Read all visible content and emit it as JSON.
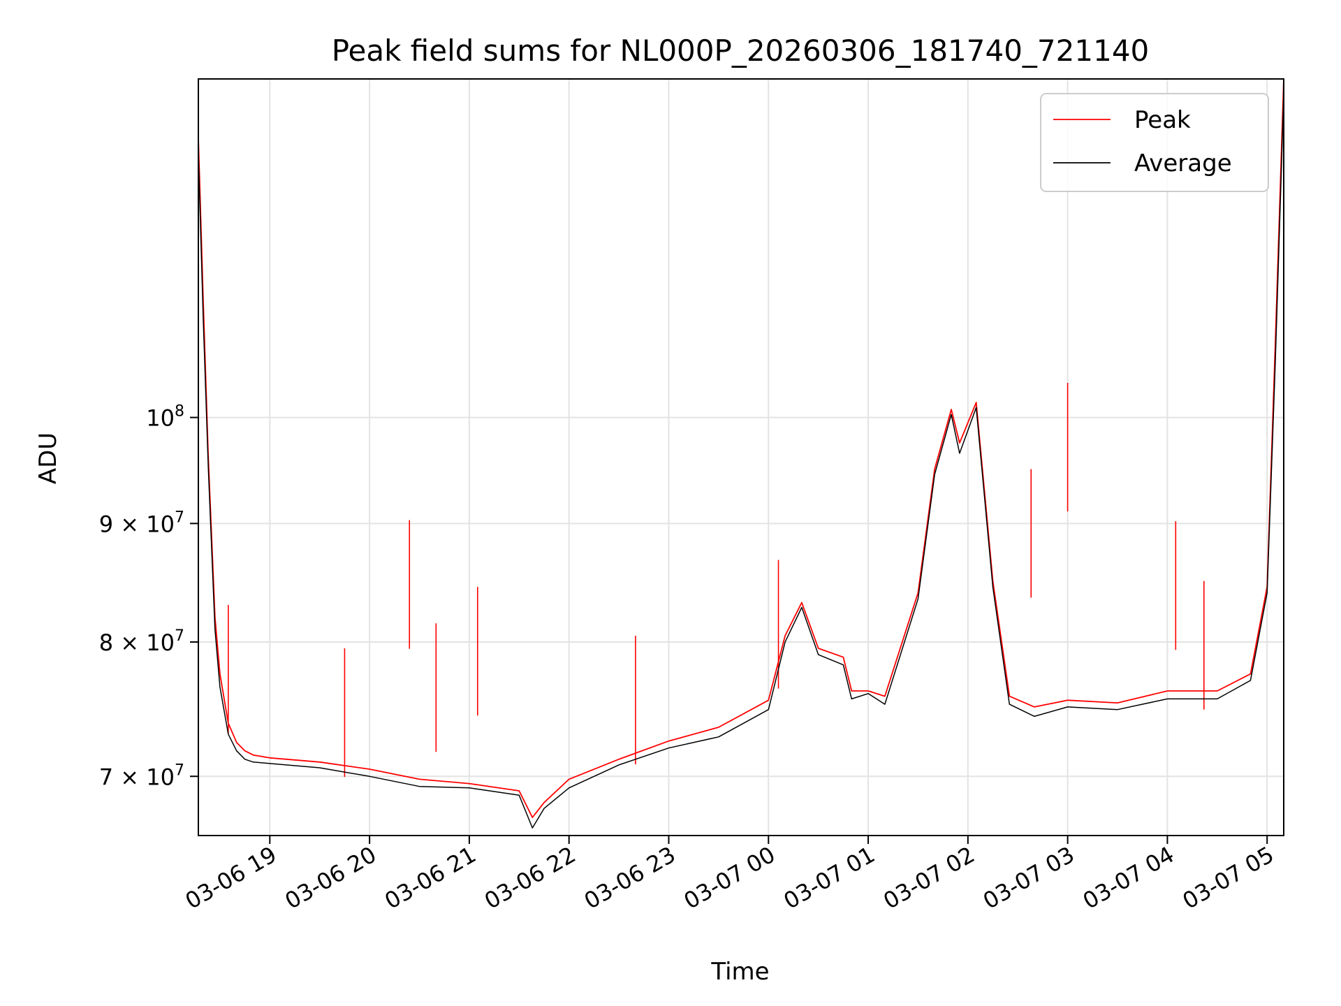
{
  "chart_data": {
    "type": "line",
    "title": "Peak field sums for NL000P_20260306_181740_721140",
    "xlabel": "Time",
    "ylabel": "ADU",
    "yscale": "log",
    "ylim": [
      66000000,
      140000000
    ],
    "xlim": [
      "2026-03-06 18:17",
      "2026-03-07 05:10"
    ],
    "grid": true,
    "legend": "upper right",
    "x_ticks": [
      "03-06 19",
      "03-06 20",
      "03-06 21",
      "03-06 22",
      "03-06 23",
      "03-07 00",
      "03-07 01",
      "03-07 02",
      "03-07 03",
      "03-07 04",
      "03-07 05"
    ],
    "x_tick_times": [
      "2026-03-06 19:00",
      "2026-03-06 20:00",
      "2026-03-06 21:00",
      "2026-03-06 22:00",
      "2026-03-06 23:00",
      "2026-03-07 00:00",
      "2026-03-07 01:00",
      "2026-03-07 02:00",
      "2026-03-07 03:00",
      "2026-03-07 04:00",
      "2026-03-07 05:00"
    ],
    "y_ticks": [
      {
        "value": 70000000,
        "mantissa": "7",
        "exponent": "7"
      },
      {
        "value": 80000000,
        "mantissa": "8",
        "exponent": "7"
      },
      {
        "value": 90000000,
        "mantissa": "9",
        "exponent": "7"
      },
      {
        "value": 100000000,
        "mantissa": "",
        "exponent": "8"
      }
    ],
    "series": [
      {
        "name": "Peak",
        "color": "#ff0000",
        "x": [
          "2026-03-06 18:17",
          "2026-03-06 18:20",
          "2026-03-06 18:23",
          "2026-03-06 18:27",
          "2026-03-06 18:30",
          "2026-03-06 18:35",
          "2026-03-06 18:40",
          "2026-03-06 18:45",
          "2026-03-06 18:50",
          "2026-03-06 19:00",
          "2026-03-06 19:30",
          "2026-03-06 20:00",
          "2026-03-06 20:30",
          "2026-03-06 21:00",
          "2026-03-06 21:30",
          "2026-03-06 21:38",
          "2026-03-06 21:45",
          "2026-03-06 22:00",
          "2026-03-06 22:30",
          "2026-03-06 23:00",
          "2026-03-06 23:30",
          "2026-03-07 00:00",
          "2026-03-07 00:10",
          "2026-03-07 00:20",
          "2026-03-07 00:30",
          "2026-03-07 00:45",
          "2026-03-07 00:50",
          "2026-03-07 01:00",
          "2026-03-07 01:10",
          "2026-03-07 01:30",
          "2026-03-07 01:40",
          "2026-03-07 01:50",
          "2026-03-07 01:55",
          "2026-03-07 02:05",
          "2026-03-07 02:15",
          "2026-03-07 02:25",
          "2026-03-07 02:40",
          "2026-03-07 03:00",
          "2026-03-07 03:30",
          "2026-03-07 04:00",
          "2026-03-07 04:30",
          "2026-03-07 04:50",
          "2026-03-07 05:00",
          "2026-03-07 05:05",
          "2026-03-07 05:10"
        ],
        "values": [
          132000000,
          112000000,
          96000000,
          82000000,
          77500000,
          73800000,
          72400000,
          71800000,
          71500000,
          71300000,
          71000000,
          70500000,
          69800000,
          69500000,
          69000000,
          67200000,
          68200000,
          69800000,
          71200000,
          72500000,
          73500000,
          75500000,
          80500000,
          83200000,
          79500000,
          78800000,
          76200000,
          76200000,
          75800000,
          84000000,
          95000000,
          100800000,
          97500000,
          101500000,
          85000000,
          75800000,
          75000000,
          75500000,
          75300000,
          76200000,
          76200000,
          77500000,
          84500000,
          108000000,
          140000000
        ]
      },
      {
        "name": "Average",
        "color": "#000000",
        "x": [
          "2026-03-06 18:17",
          "2026-03-06 18:20",
          "2026-03-06 18:23",
          "2026-03-06 18:27",
          "2026-03-06 18:30",
          "2026-03-06 18:35",
          "2026-03-06 18:40",
          "2026-03-06 18:45",
          "2026-03-06 18:50",
          "2026-03-06 19:00",
          "2026-03-06 19:30",
          "2026-03-06 20:00",
          "2026-03-06 20:30",
          "2026-03-06 21:00",
          "2026-03-06 21:30",
          "2026-03-06 21:38",
          "2026-03-06 21:45",
          "2026-03-06 22:00",
          "2026-03-06 22:30",
          "2026-03-06 23:00",
          "2026-03-06 23:30",
          "2026-03-07 00:00",
          "2026-03-07 00:10",
          "2026-03-07 00:20",
          "2026-03-07 00:30",
          "2026-03-07 00:45",
          "2026-03-07 00:50",
          "2026-03-07 01:00",
          "2026-03-07 01:10",
          "2026-03-07 01:30",
          "2026-03-07 01:40",
          "2026-03-07 01:50",
          "2026-03-07 01:55",
          "2026-03-07 02:05",
          "2026-03-07 02:15",
          "2026-03-07 02:25",
          "2026-03-07 02:40",
          "2026-03-07 03:00",
          "2026-03-07 03:30",
          "2026-03-07 04:00",
          "2026-03-07 04:30",
          "2026-03-07 04:50",
          "2026-03-07 05:00",
          "2026-03-07 05:05",
          "2026-03-07 05:10"
        ],
        "values": [
          130000000,
          110000000,
          95000000,
          81000000,
          76500000,
          73000000,
          71800000,
          71200000,
          71000000,
          70900000,
          70600000,
          70000000,
          69300000,
          69200000,
          68700000,
          66500000,
          67800000,
          69200000,
          70800000,
          72000000,
          72800000,
          74800000,
          80000000,
          82800000,
          79000000,
          78200000,
          75600000,
          76000000,
          75200000,
          83500000,
          94500000,
          100300000,
          96500000,
          101000000,
          84500000,
          75200000,
          74300000,
          75000000,
          74800000,
          75600000,
          75600000,
          77000000,
          84000000,
          106000000,
          138000000
        ]
      }
    ],
    "spikes": {
      "x": [
        "2026-03-06 20:24",
        "2026-03-06 21:05",
        "2026-03-06 18:35",
        "2026-03-06 19:45",
        "2026-03-06 20:40",
        "2026-03-06 22:40",
        "2026-03-07 00:06",
        "2026-03-07 02:38",
        "2026-03-07 03:00",
        "2026-03-07 04:05",
        "2026-03-07 04:22"
      ],
      "values": [
        90300000,
        84500000,
        83000000,
        79500000,
        81500000,
        80500000,
        86800000,
        95000000,
        103500000,
        90200000,
        85000000
      ]
    }
  }
}
